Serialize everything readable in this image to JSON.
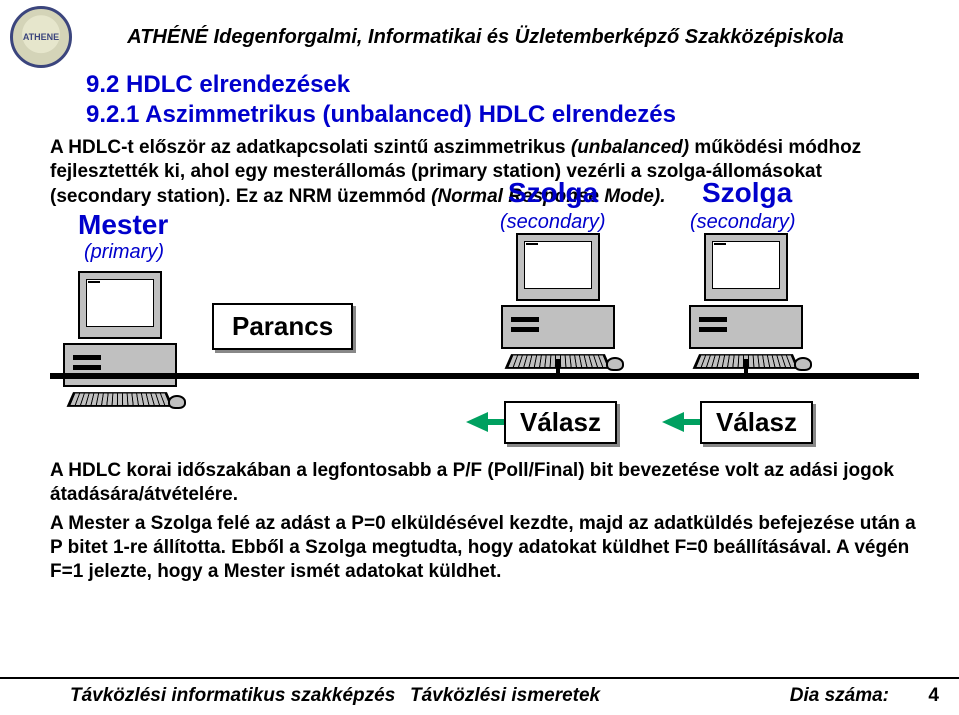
{
  "header": {
    "logo_text": "ATHENE",
    "school": "ATHÉNÉ Idegenforgalmi, Informatikai és Üzletemberképző Szakközépiskola"
  },
  "titles": {
    "section": "9.2  HDLC elrendezések",
    "subsection": "9.2.1 Aszimmetrikus (unbalanced) HDLC elrendezés"
  },
  "para1_a": "A HDLC-t először az adatkapcsolati szintű aszimmetrikus ",
  "para1_b": "(unbalanced)",
  "para1_c": " működési módhoz fejlesztették ki, ahol egy mesterállomás (primary station) vezérli a szolga-állomásokat (secondary station). Ez az NRM üzemmód ",
  "para1_d": "(Normal Response Mode).",
  "diagram": {
    "master": "Mester",
    "master_sub": "(primary)",
    "slave": "Szolga",
    "slave_sub": "(secondary)",
    "command": "Parancs",
    "response": "Válasz"
  },
  "para2": "A HDLC korai időszakában a legfontosabb a P/F (Poll/Final) bit bevezetése volt az adási jogok átadására/átvételére.",
  "para3": "A Mester a Szolga felé az adást a P=0 elküldésével kezdte, majd az adatküldés befejezése után a P bitet 1-re állította. Ebből a Szolga megtudta, hogy adatokat küldhet F=0 beállításával. A végén F=1 jelezte, hogy a Mester ismét adatokat küldhet.",
  "footer": {
    "left": "Távközlési informatikus szakképzés",
    "center": "Távközlési ismeretek",
    "right_label": "Dia száma:",
    "page": "4"
  },
  "colors": {
    "title_blue": "#0000cc",
    "arrow_green": "#00a060"
  }
}
